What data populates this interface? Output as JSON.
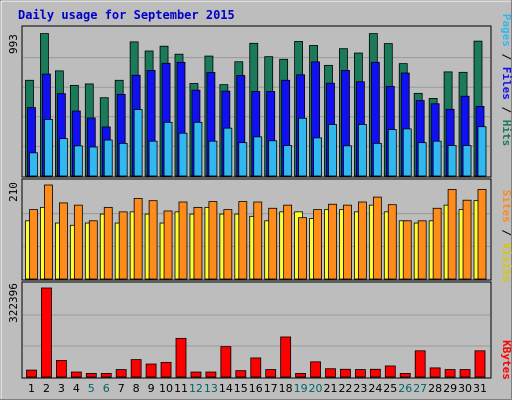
{
  "chart_data": [
    {
      "type": "bar",
      "panel": "hits-files-pages",
      "title": "Daily usage for September 2015",
      "y_top_label": "993",
      "ylim": [
        0,
        993
      ],
      "legend": [
        "Pages",
        "Files",
        "Hits"
      ],
      "categories": [
        "1",
        "2",
        "3",
        "4",
        "5",
        "6",
        "7",
        "8",
        "9",
        "10",
        "11",
        "12",
        "13",
        "14",
        "15",
        "16",
        "17",
        "18",
        "19",
        "20",
        "21",
        "22",
        "23",
        "24",
        "25",
        "26",
        "27",
        "28",
        "29",
        "30",
        "31"
      ],
      "series": [
        {
          "name": "Hits",
          "color": "#1a7a5a",
          "values": [
            660,
            982,
            725,
            625,
            635,
            540,
            660,
            925,
            862,
            895,
            840,
            638,
            827,
            630,
            788,
            915,
            823,
            805,
            928,
            900,
            763,
            878,
            848,
            982,
            913,
            775,
            570,
            535,
            718,
            715,
            930
          ]
        },
        {
          "name": "Files",
          "color": "#1010f0",
          "values": [
            472,
            703,
            568,
            448,
            400,
            338,
            563,
            695,
            728,
            777,
            784,
            592,
            714,
            585,
            693,
            583,
            583,
            660,
            698,
            787,
            640,
            728,
            650,
            784,
            618,
            710,
            520,
            498,
            460,
            550,
            480
          ]
        },
        {
          "name": "Pages",
          "color": "#30b8f0",
          "values": [
            160,
            390,
            258,
            208,
            200,
            248,
            225,
            458,
            240,
            370,
            295,
            370,
            240,
            330,
            230,
            270,
            243,
            210,
            398,
            263,
            355,
            208,
            355,
            225,
            320,
            325,
            230,
            240,
            210,
            210,
            340
          ]
        }
      ]
    },
    {
      "type": "bar",
      "panel": "visits-sites",
      "y_top_label": "210",
      "ylim": [
        0,
        210
      ],
      "legend": [
        "Sites",
        "Visits"
      ],
      "categories": [
        "1",
        "2",
        "3",
        "4",
        "5",
        "6",
        "7",
        "8",
        "9",
        "10",
        "11",
        "12",
        "13",
        "14",
        "15",
        "16",
        "17",
        "18",
        "19",
        "20",
        "21",
        "22",
        "23",
        "24",
        "25",
        "26",
        "27",
        "28",
        "29",
        "30",
        "31"
      ],
      "series": [
        {
          "name": "Visits",
          "color": "#ff8c1a",
          "values": [
            155,
            210,
            170,
            165,
            130,
            160,
            150,
            180,
            175,
            152,
            172,
            160,
            173,
            155,
            173,
            172,
            158,
            165,
            137,
            155,
            167,
            165,
            172,
            183,
            166,
            130,
            130,
            158,
            200,
            176,
            200
          ]
        },
        {
          "name": "Sites",
          "color": "#ffff30",
          "values": [
            130,
            160,
            125,
            120,
            125,
            145,
            125,
            150,
            145,
            125,
            150,
            145,
            160,
            145,
            145,
            140,
            130,
            150,
            150,
            135,
            155,
            155,
            150,
            165,
            150,
            130,
            125,
            130,
            165,
            155,
            175
          ]
        }
      ]
    },
    {
      "type": "bar",
      "panel": "kbytes",
      "y_top_label": "322396",
      "ylim": [
        0,
        322396
      ],
      "legend": [
        "KBytes"
      ],
      "categories": [
        "1",
        "2",
        "3",
        "4",
        "5",
        "6",
        "7",
        "8",
        "9",
        "10",
        "11",
        "12",
        "13",
        "14",
        "15",
        "16",
        "17",
        "18",
        "19",
        "20",
        "21",
        "22",
        "23",
        "24",
        "25",
        "26",
        "27",
        "28",
        "29",
        "30",
        "31"
      ],
      "highlighted_categories": [
        "5",
        "6",
        "12",
        "13",
        "19",
        "20",
        "26",
        "27"
      ],
      "series": [
        {
          "name": "KBytes",
          "color": "#ff0000",
          "values": [
            25000,
            322396,
            60000,
            18000,
            13000,
            13000,
            27000,
            63000,
            47000,
            53000,
            140000,
            18000,
            18000,
            110000,
            23000,
            69000,
            27000,
            145000,
            13000,
            55000,
            30000,
            28000,
            27000,
            28000,
            40000,
            13000,
            95000,
            33000,
            27000,
            27000,
            95000
          ]
        }
      ]
    }
  ],
  "colors": {
    "background": "#bdbdbd",
    "title": "#0000cc",
    "axis_text": "#000000",
    "weekend_day": "#006666"
  }
}
